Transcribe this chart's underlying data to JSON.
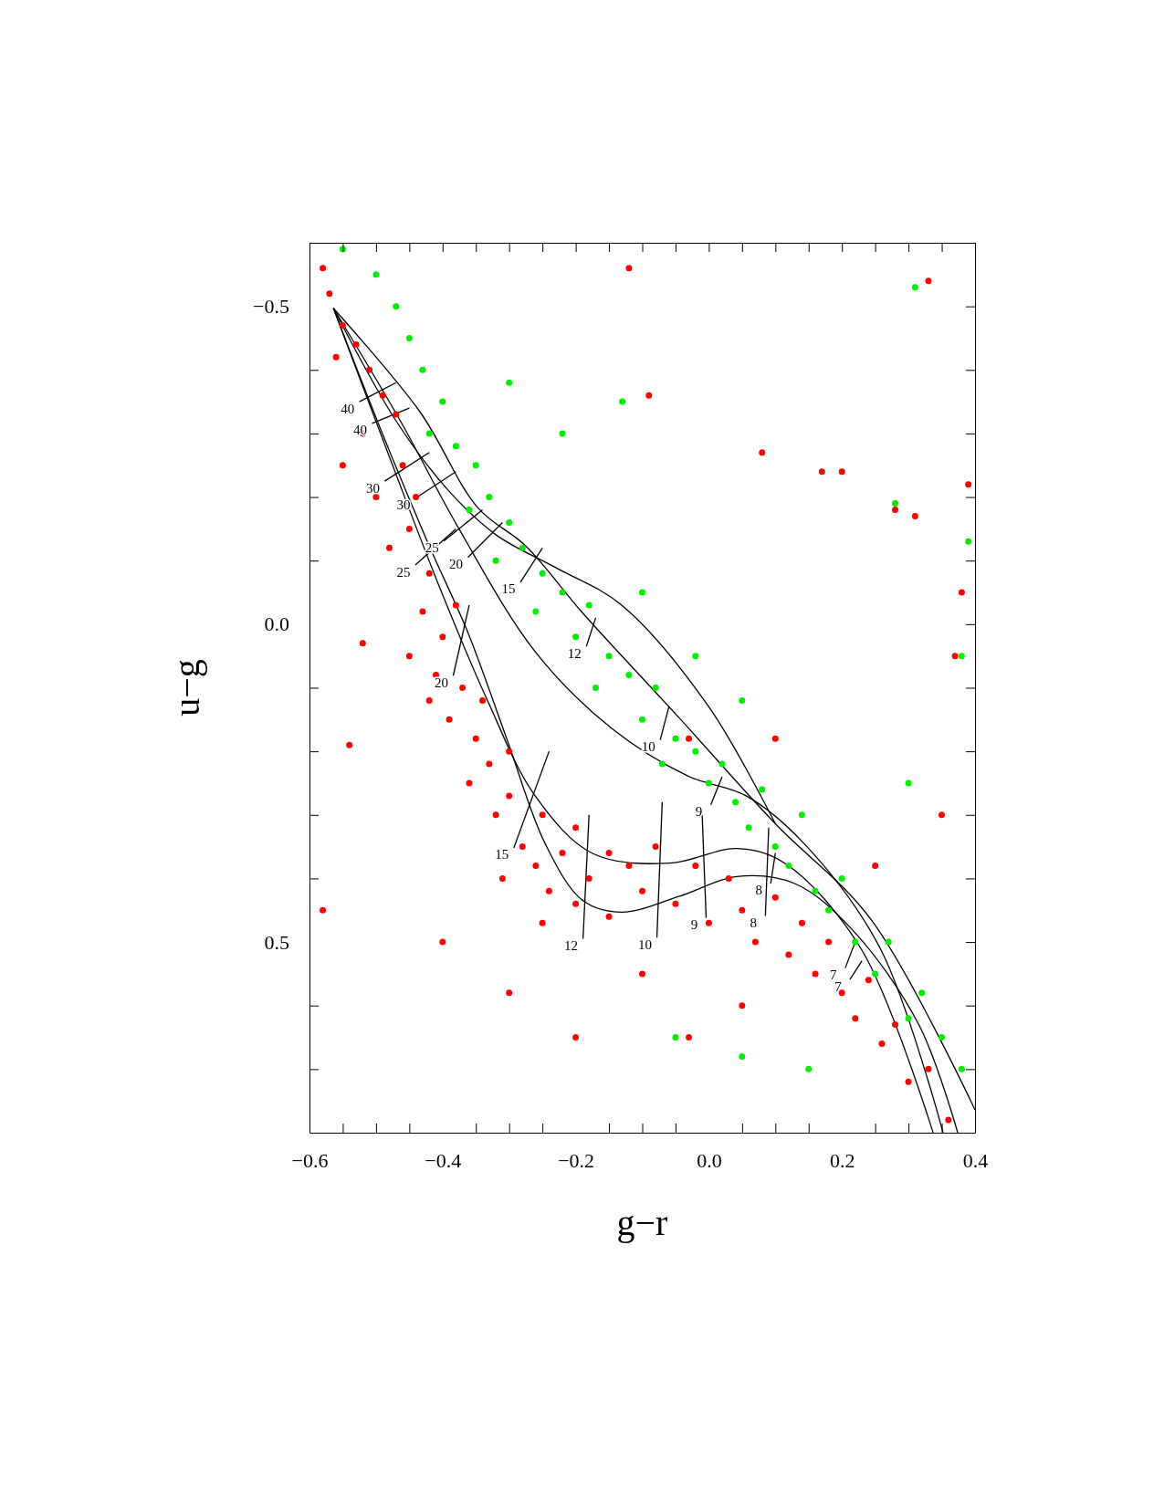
{
  "chart_data": {
    "type": "scatter",
    "xlabel": "g−r",
    "ylabel": "u−g",
    "xlim": [
      -0.6,
      0.4
    ],
    "ylim": [
      0.8,
      -0.6
    ],
    "xticks": [
      {
        "value": -0.6,
        "label": "−0.6"
      },
      {
        "value": -0.55,
        "label": null
      },
      {
        "value": -0.5,
        "label": null
      },
      {
        "value": -0.45,
        "label": null
      },
      {
        "value": -0.4,
        "label": "−0.4"
      },
      {
        "value": -0.35,
        "label": null
      },
      {
        "value": -0.3,
        "label": null
      },
      {
        "value": -0.25,
        "label": null
      },
      {
        "value": -0.2,
        "label": "−0.2"
      },
      {
        "value": -0.15,
        "label": null
      },
      {
        "value": -0.1,
        "label": null
      },
      {
        "value": -0.05,
        "label": null
      },
      {
        "value": 0,
        "label": "0.0"
      },
      {
        "value": 0.05,
        "label": null
      },
      {
        "value": 0.1,
        "label": null
      },
      {
        "value": 0.15,
        "label": null
      },
      {
        "value": 0.2,
        "label": "0.2"
      },
      {
        "value": 0.25,
        "label": null
      },
      {
        "value": 0.3,
        "label": null
      },
      {
        "value": 0.35,
        "label": null
      },
      {
        "value": 0.4,
        "label": "0.4"
      }
    ],
    "yticks": [
      {
        "value": -0.5,
        "label": "−0.5"
      },
      {
        "value": -0.4,
        "label": null
      },
      {
        "value": -0.3,
        "label": null
      },
      {
        "value": -0.2,
        "label": null
      },
      {
        "value": -0.1,
        "label": null
      },
      {
        "value": 0,
        "label": "0.0"
      },
      {
        "value": 0.1,
        "label": null
      },
      {
        "value": 0.2,
        "label": null
      },
      {
        "value": 0.3,
        "label": null
      },
      {
        "value": 0.4,
        "label": null
      },
      {
        "value": 0.5,
        "label": "0.5"
      },
      {
        "value": 0.6,
        "label": null
      },
      {
        "value": 0.7,
        "label": null
      }
    ],
    "series": [
      {
        "color": "#ff0000",
        "x": [
          -0.58,
          -0.57,
          -0.55,
          -0.53,
          -0.56,
          -0.51,
          -0.49,
          -0.52,
          -0.47,
          -0.46,
          -0.5,
          -0.44,
          -0.48,
          -0.45,
          -0.42,
          -0.43,
          -0.4,
          -0.41,
          -0.38,
          -0.37,
          -0.39,
          -0.35,
          -0.36,
          -0.33,
          -0.32,
          -0.3,
          -0.28,
          -0.31,
          -0.26,
          -0.24,
          -0.22,
          -0.2,
          -0.18,
          -0.15,
          -0.12,
          -0.1,
          -0.08,
          -0.05,
          -0.02,
          0,
          0.03,
          0.05,
          0.07,
          0.1,
          0.12,
          0.14,
          0.16,
          0.18,
          0.2,
          0.22,
          0.24,
          0.26,
          0.28,
          0.3,
          0.33,
          0.36,
          -0.25,
          -0.2,
          -0.15,
          -0.3,
          -0.34,
          -0.42,
          -0.45,
          -0.55,
          -0.52,
          -0.54,
          -0.58,
          -0.4,
          -0.3,
          -0.25,
          -0.2,
          -0.1,
          -0.03,
          0.05,
          -0.12,
          -0.09,
          0.08,
          0.17,
          0.2,
          0.28,
          0.31,
          0.33,
          0.38,
          0.37,
          0.39,
          0.35,
          0.1,
          0.25,
          -0.03
        ],
        "values": [
          -0.56,
          -0.52,
          -0.47,
          -0.44,
          -0.42,
          -0.4,
          -0.36,
          -0.3,
          -0.33,
          -0.25,
          -0.2,
          -0.2,
          -0.12,
          -0.15,
          -0.08,
          -0.02,
          0.02,
          0.08,
          -0.03,
          0.1,
          0.15,
          0.18,
          0.25,
          0.22,
          0.3,
          0.27,
          0.35,
          0.4,
          0.38,
          0.42,
          0.36,
          0.44,
          0.4,
          0.46,
          0.38,
          0.42,
          0.35,
          0.44,
          0.38,
          0.47,
          0.4,
          0.45,
          0.5,
          0.43,
          0.52,
          0.47,
          0.55,
          0.5,
          0.58,
          0.62,
          0.56,
          0.66,
          0.63,
          0.72,
          0.7,
          0.78,
          0.3,
          0.32,
          0.36,
          0.2,
          0.12,
          0.12,
          0.05,
          -0.25,
          0.03,
          0.19,
          0.45,
          0.5,
          0.58,
          0.47,
          0.65,
          0.55,
          0.65,
          0.6,
          -0.56,
          -0.36,
          -0.27,
          -0.24,
          -0.24,
          -0.18,
          -0.17,
          -0.54,
          -0.05,
          0.05,
          -0.22,
          0.3,
          0.18,
          0.38,
          0.18
        ]
      },
      {
        "color": "#00ee00",
        "x": [
          -0.55,
          -0.5,
          -0.47,
          -0.45,
          -0.43,
          -0.4,
          -0.42,
          -0.38,
          -0.35,
          -0.33,
          -0.36,
          -0.3,
          -0.28,
          -0.32,
          -0.25,
          -0.26,
          -0.22,
          -0.2,
          -0.18,
          -0.15,
          -0.17,
          -0.12,
          -0.1,
          -0.08,
          -0.05,
          -0.07,
          -0.02,
          0,
          0.02,
          0.04,
          0.06,
          0.08,
          0.1,
          0.12,
          0.14,
          0.16,
          0.18,
          0.2,
          0.22,
          0.25,
          0.27,
          0.3,
          0.32,
          0.35,
          0.38,
          -0.05,
          0.05,
          0.15,
          -0.1,
          -0.02,
          0.05,
          -0.3,
          -0.22,
          -0.13,
          0.28,
          0.31,
          0.39,
          0.38,
          0.3
        ],
        "values": [
          -0.59,
          -0.55,
          -0.5,
          -0.45,
          -0.4,
          -0.35,
          -0.3,
          -0.28,
          -0.25,
          -0.2,
          -0.18,
          -0.16,
          -0.12,
          -0.1,
          -0.08,
          -0.02,
          -0.05,
          0.02,
          -0.03,
          0.05,
          0.1,
          0.08,
          0.15,
          0.1,
          0.18,
          0.22,
          0.2,
          0.25,
          0.22,
          0.28,
          0.32,
          0.26,
          0.35,
          0.38,
          0.3,
          0.42,
          0.45,
          0.4,
          0.5,
          0.55,
          0.5,
          0.62,
          0.58,
          0.65,
          0.7,
          0.65,
          0.68,
          0.7,
          -0.05,
          0.05,
          0.12,
          -0.38,
          -0.3,
          -0.35,
          -0.19,
          -0.53,
          -0.13,
          0.05,
          0.25
        ]
      },
      {
        "type": "line",
        "color": "#000000",
        "x": [
          -0.564,
          -0.434,
          -0.347,
          -0.275,
          -0.189,
          -0.044,
          0.1,
          0.244,
          0.4
        ],
        "values": [
          -0.497,
          -0.334,
          -0.183,
          -0.123,
          -0.017,
          0.148,
          0.314,
          0.465,
          0.764
        ]
      },
      {
        "type": "line",
        "color": "#000000",
        "x": [
          -0.564,
          -0.492,
          -0.42,
          -0.362,
          -0.304,
          -0.246,
          -0.189,
          -0.131,
          -0.044,
          0.042,
          0.129,
          0.215,
          0.316,
          0.374
        ],
        "values": [
          -0.497,
          -0.304,
          -0.123,
          0.013,
          0.179,
          0.345,
          0.435,
          0.453,
          0.428,
          0.397,
          0.408,
          0.48,
          0.631,
          0.8
        ]
      },
      {
        "type": "line",
        "color": "#000000",
        "x": [
          -0.564,
          -0.478,
          -0.406,
          -0.333,
          -0.261,
          -0.174,
          -0.059,
          0.042,
          0.114,
          0.229,
          0.337
        ],
        "values": [
          -0.497,
          -0.258,
          -0.062,
          0.119,
          0.27,
          0.361,
          0.376,
          0.353,
          0.376,
          0.511,
          0.8
        ]
      },
      {
        "type": "line",
        "color": "#000000",
        "x": [
          -0.564,
          -0.463,
          -0.377,
          -0.261,
          -0.146,
          -0.031,
          0.056,
          0.143,
          0.258,
          0.352
        ],
        "values": [
          -0.497,
          -0.319,
          -0.153,
          0.043,
          0.164,
          0.239,
          0.27,
          0.345,
          0.511,
          0.8
        ]
      },
      {
        "type": "line",
        "color": "#000000",
        "x": [
          -0.564,
          -0.47,
          -0.391,
          -0.319,
          -0.232,
          -0.131,
          0.0,
          0.1
        ],
        "values": [
          -0.497,
          -0.32,
          -0.21,
          -0.14,
          -0.09,
          -0.03,
          0.13,
          0.314
        ]
      },
      {
        "type": "line",
        "color": "#000000",
        "x": [
          -0.525,
          -0.47
        ],
        "values": [
          -0.35,
          -0.38
        ]
      },
      {
        "type": "line",
        "color": "#000000",
        "x": [
          -0.506,
          -0.45
        ],
        "values": [
          -0.316,
          -0.34
        ]
      },
      {
        "type": "line",
        "color": "#000000",
        "x": [
          -0.487,
          -0.42
        ],
        "values": [
          -0.225,
          -0.27
        ]
      },
      {
        "type": "line",
        "color": "#000000",
        "x": [
          -0.441,
          -0.38
        ],
        "values": [
          -0.198,
          -0.24
        ]
      },
      {
        "type": "line",
        "color": "#000000",
        "x": [
          -0.398,
          -0.34
        ],
        "values": [
          -0.131,
          -0.18
        ]
      },
      {
        "type": "line",
        "color": "#000000",
        "x": [
          -0.441,
          -0.38
        ],
        "values": [
          -0.093,
          -0.15
        ]
      },
      {
        "type": "line",
        "color": "#000000",
        "x": [
          -0.362,
          -0.31
        ],
        "values": [
          -0.105,
          -0.16
        ]
      },
      {
        "type": "line",
        "color": "#000000",
        "x": [
          -0.283,
          -0.25
        ],
        "values": [
          -0.066,
          -0.12
        ]
      },
      {
        "type": "line",
        "color": "#000000",
        "x": [
          -0.184,
          -0.17
        ],
        "values": [
          0.035,
          -0.01
        ]
      },
      {
        "type": "line",
        "color": "#000000",
        "x": [
          -0.384,
          -0.36
        ],
        "values": [
          0.081,
          -0.03
        ]
      },
      {
        "type": "line",
        "color": "#000000",
        "x": [
          -0.073,
          -0.06
        ],
        "values": [
          0.182,
          0.13
        ]
      },
      {
        "type": "line",
        "color": "#000000",
        "x": [
          0.003,
          0.02
        ],
        "values": [
          0.284,
          0.24
        ]
      },
      {
        "type": "line",
        "color": "#000000",
        "x": [
          -0.293,
          -0.24
        ],
        "values": [
          0.352,
          0.2
        ]
      },
      {
        "type": "line",
        "color": "#000000",
        "x": [
          0.093,
          0.1
        ],
        "values": [
          0.408,
          0.36
        ]
      },
      {
        "type": "line",
        "color": "#000000",
        "x": [
          -0.004,
          -0.01
        ],
        "values": [
          0.462,
          0.3
        ]
      },
      {
        "type": "line",
        "color": "#000000",
        "x": [
          0.085,
          0.09
        ],
        "values": [
          0.459,
          0.32
        ]
      },
      {
        "type": "line",
        "color": "#000000",
        "x": [
          -0.189,
          -0.18
        ],
        "values": [
          0.495,
          0.3
        ]
      },
      {
        "type": "line",
        "color": "#000000",
        "x": [
          -0.078,
          -0.07
        ],
        "values": [
          0.493,
          0.28
        ]
      },
      {
        "type": "line",
        "color": "#000000",
        "x": [
          0.205,
          0.22
        ],
        "values": [
          0.541,
          0.5
        ]
      },
      {
        "type": "line",
        "color": "#000000",
        "x": [
          0.212,
          0.23
        ],
        "values": [
          0.559,
          0.53
        ]
      }
    ],
    "annotations": [
      {
        "text": "40",
        "x": -0.525,
        "y": -0.35
      },
      {
        "text": "40",
        "x": -0.506,
        "y": -0.316
      },
      {
        "text": "30",
        "x": -0.487,
        "y": -0.225
      },
      {
        "text": "30",
        "x": -0.441,
        "y": -0.198
      },
      {
        "text": "25",
        "x": -0.398,
        "y": -0.131
      },
      {
        "text": "25",
        "x": -0.441,
        "y": -0.093
      },
      {
        "text": "20",
        "x": -0.362,
        "y": -0.105
      },
      {
        "text": "15",
        "x": -0.283,
        "y": -0.066
      },
      {
        "text": "12",
        "x": -0.184,
        "y": 0.035
      },
      {
        "text": "20",
        "x": -0.384,
        "y": 0.081
      },
      {
        "text": "10",
        "x": -0.073,
        "y": 0.182
      },
      {
        "text": "9",
        "x": 0.003,
        "y": 0.284
      },
      {
        "text": "15",
        "x": -0.293,
        "y": 0.352
      },
      {
        "text": "8",
        "x": 0.093,
        "y": 0.408
      },
      {
        "text": "9",
        "x": -0.004,
        "y": 0.462
      },
      {
        "text": "8",
        "x": 0.085,
        "y": 0.459
      },
      {
        "text": "12",
        "x": -0.189,
        "y": 0.495
      },
      {
        "text": "10",
        "x": -0.078,
        "y": 0.493
      },
      {
        "text": "7",
        "x": 0.205,
        "y": 0.541
      },
      {
        "text": "7",
        "x": 0.212,
        "y": 0.559
      }
    ]
  }
}
